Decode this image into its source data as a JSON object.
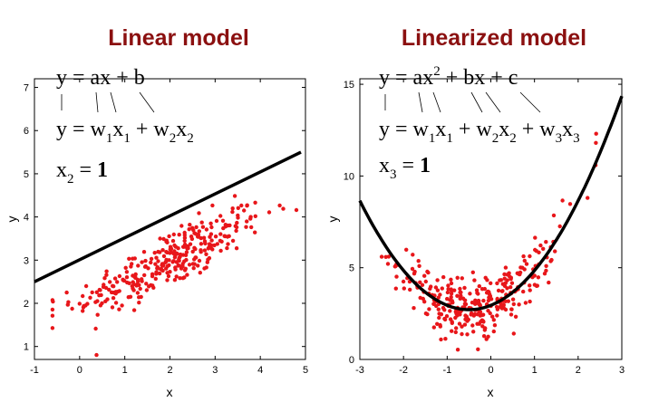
{
  "chart_data": [
    {
      "type": "scatter",
      "title": "Linear model",
      "xlabel": "x",
      "ylabel": "y",
      "xlim": [
        -1,
        5
      ],
      "ylim": [
        0.7,
        7.2
      ],
      "xticks": [
        -1,
        0,
        1,
        2,
        3,
        4,
        5
      ],
      "yticks": [
        1,
        2,
        3,
        4,
        5,
        6,
        7
      ],
      "marker_color": "#e8161a",
      "fit_color": "#000000",
      "fit_line": {
        "x": [
          -1,
          4.9
        ],
        "y": [
          2.5,
          5.5
        ]
      },
      "equations": {
        "line1": [
          "y = ax + b"
        ],
        "line2": [
          "y = w",
          "1",
          "x",
          "1",
          " + w",
          "2",
          "x",
          "2"
        ],
        "line3": [
          "x",
          "2",
          " = ",
          "1"
        ]
      },
      "points": {
        "count": 320,
        "x_mean": 2.0,
        "x_sd": 1.05,
        "slope": 0.5,
        "intercept": 3.0,
        "residual_sd": 0.33
      }
    },
    {
      "type": "scatter",
      "title": "Linearized model",
      "xlabel": "x",
      "ylabel": "y",
      "xlim": [
        -3,
        3
      ],
      "ylim": [
        0,
        15.3
      ],
      "xticks": [
        -3,
        -2,
        -1,
        0,
        1,
        2,
        3
      ],
      "yticks": [
        0,
        5,
        10,
        15
      ],
      "marker_color": "#e8161a",
      "fit_color": "#000000",
      "fit_curve": {
        "a": 0.95,
        "b": 0.95,
        "c": 2.95,
        "x_range": [
          -3,
          3
        ]
      },
      "equations": {
        "line1": [
          "y = ax",
          "2",
          " + bx + c"
        ],
        "line2": [
          "y = w",
          "1",
          "x",
          "1",
          " + w",
          "2",
          "x",
          "2",
          " + w",
          "3",
          "x",
          "3"
        ],
        "line3": [
          "x",
          "3",
          " = ",
          "1"
        ]
      },
      "points": {
        "count": 320,
        "x_mean": -0.3,
        "x_sd": 0.9,
        "residual_sd": 0.8
      }
    }
  ]
}
